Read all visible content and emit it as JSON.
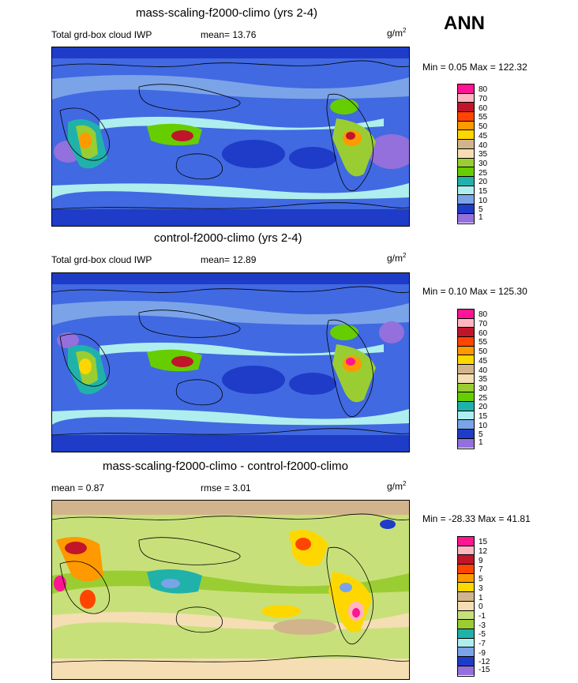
{
  "season": "ANN",
  "panels": [
    {
      "title": "mass-scaling-f2000-climo (yrs 2-4)",
      "left_label": "Total grd-box cloud IWP",
      "mean": "mean=  13.76",
      "units": "g/m",
      "units_sup": "2",
      "minmax": "Min =   0.05 Max = 122.32",
      "levels": [
        "80",
        "70",
        "60",
        "55",
        "50",
        "45",
        "40",
        "35",
        "30",
        "25",
        "20",
        "15",
        "10",
        "5",
        "1"
      ],
      "colors": [
        "#ff1493",
        "#ffb6c1",
        "#c0152a",
        "#ff4500",
        "#ff9900",
        "#ffd700",
        "#d2b48c",
        "#f5deb3",
        "#9acd32",
        "#66cd00",
        "#20b2aa",
        "#afeeee",
        "#7ba3e8",
        "#1e3cc8",
        "#9370db"
      ]
    },
    {
      "title": "control-f2000-climo (yrs 2-4)",
      "left_label": "Total grd-box cloud IWP",
      "mean": "mean=  12.89",
      "units": "g/m",
      "units_sup": "2",
      "minmax": "Min =   0.10 Max = 125.30",
      "levels": [
        "80",
        "70",
        "60",
        "55",
        "50",
        "45",
        "40",
        "35",
        "30",
        "25",
        "20",
        "15",
        "10",
        "5",
        "1"
      ],
      "colors": [
        "#ff1493",
        "#ffb6c1",
        "#c0152a",
        "#ff4500",
        "#ff9900",
        "#ffd700",
        "#d2b48c",
        "#f5deb3",
        "#9acd32",
        "#66cd00",
        "#20b2aa",
        "#afeeee",
        "#7ba3e8",
        "#1e3cc8",
        "#9370db"
      ]
    },
    {
      "title": "mass-scaling-f2000-climo - control-f2000-climo",
      "left_label": "mean =   0.87",
      "mean": "rmse =   3.01",
      "units": "g/m",
      "units_sup": "2",
      "minmax": "Min = -28.33 Max =  41.81",
      "levels": [
        "15",
        "12",
        "9",
        "7",
        "5",
        "3",
        "1",
        "0",
        "-1",
        "-3",
        "-5",
        "-7",
        "-9",
        "-12",
        "-15"
      ],
      "colors": [
        "#ff1493",
        "#ffb6c1",
        "#c0152a",
        "#ff4500",
        "#ff9900",
        "#ffd700",
        "#d2b48c",
        "#f5deb3",
        "#c8e07a",
        "#9acd32",
        "#20b2aa",
        "#afeeee",
        "#7ba3e8",
        "#1e3cc8",
        "#9370db"
      ]
    }
  ]
}
